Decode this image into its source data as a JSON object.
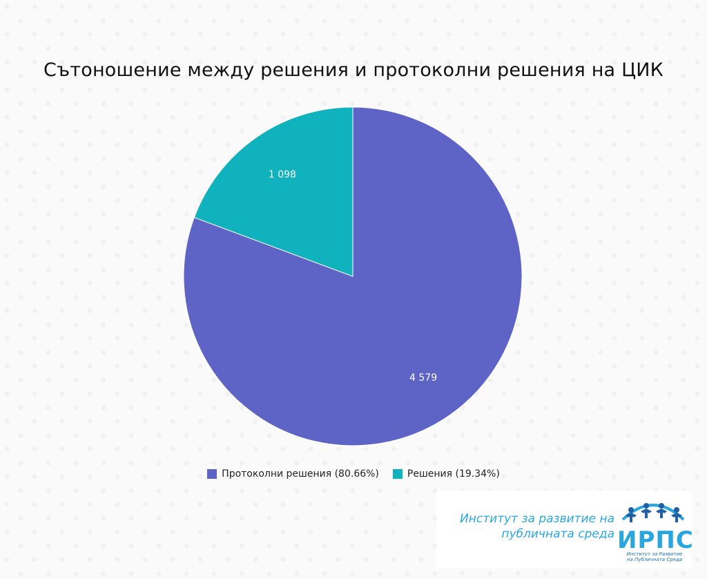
{
  "chart_data": {
    "type": "pie",
    "title": "Сътоношение между решения и протоколни решения на ЦИК",
    "slices": [
      {
        "label": "Протоколни решения",
        "value": 4579,
        "value_label": "4 579",
        "percent_label": "80.66%",
        "legend": "Протоколни решения (80.66%)",
        "color": "#5e63c6"
      },
      {
        "label": "Решения",
        "value": 1098,
        "value_label": "1 098",
        "percent_label": "19.34%",
        "legend": "Решения (19.34%)",
        "color": "#10b3bd"
      }
    ],
    "legend_position": "bottom"
  },
  "logo": {
    "line1": "Институт за развитие на",
    "line2": "публичната среда",
    "abbr": "ИРПС",
    "small_line1": "Институт за Развитие",
    "small_line2": "на Публичната Среда",
    "color": "#2aa6de"
  }
}
